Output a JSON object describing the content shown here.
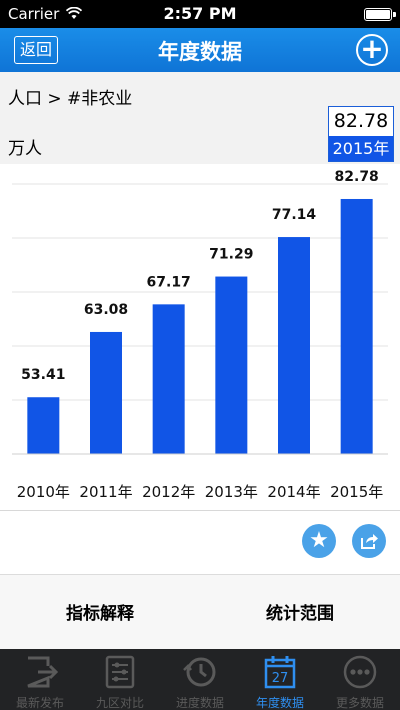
{
  "status_bar": {
    "carrier": "Carrier",
    "time": "2:57 PM"
  },
  "nav": {
    "back_label": "返回",
    "title": "年度数据"
  },
  "info": {
    "breadcrumb": "人口 > #非农业",
    "unit": "万人",
    "selected_value": "82.78",
    "selected_year": "2015年"
  },
  "chart_data": {
    "type": "bar",
    "categories": [
      "2010年",
      "2011年",
      "2012年",
      "2013年",
      "2014年",
      "2015年"
    ],
    "values": [
      53.41,
      63.08,
      67.17,
      71.29,
      77.14,
      82.78
    ],
    "value_labels": [
      "53.41",
      "63.08",
      "67.17",
      "71.29",
      "77.14",
      "82.78"
    ],
    "grid": "horizontal",
    "bar_color": "#1155e6"
  },
  "actions": {
    "favorite": "star-icon",
    "share": "share-icon"
  },
  "bottom_buttons": {
    "indicator": "指标解释",
    "range": "统计范围"
  },
  "tabs": [
    {
      "label": "最新发布",
      "icon": "exit-icon"
    },
    {
      "label": "九区对比",
      "icon": "sliders-icon"
    },
    {
      "label": "进度数据",
      "icon": "clock-icon"
    },
    {
      "label": "年度数据",
      "icon": "calendar-icon",
      "icon_text": "27",
      "active": true
    },
    {
      "label": "更多数据",
      "icon": "more-icon"
    }
  ],
  "colors": {
    "nav": "#1a8de8",
    "bar": "#1155e6",
    "tab_active": "#2f8ff0",
    "tab_inactive": "#5a5a5a"
  }
}
